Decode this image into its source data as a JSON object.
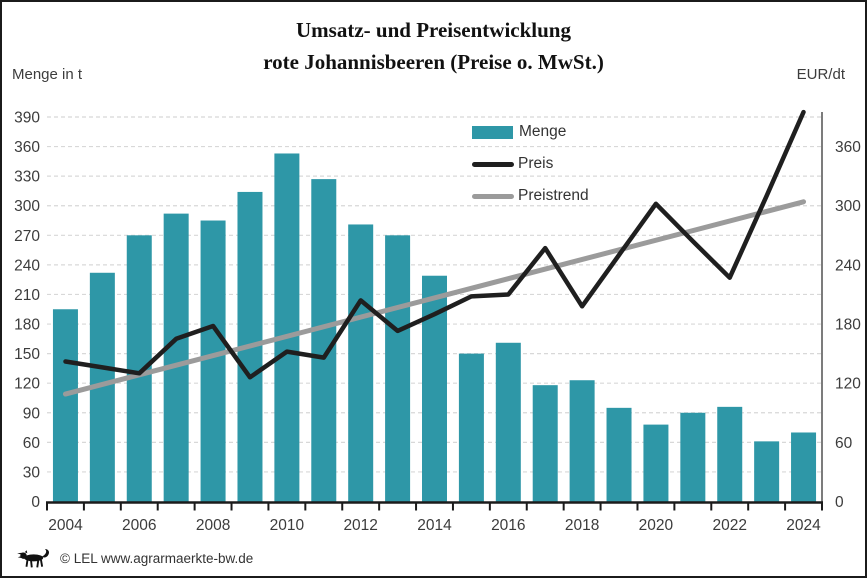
{
  "title": {
    "line1": "Umsatz- und Preisentwicklung",
    "line2": "rote Johannisbeeren (Preise o. MwSt.)"
  },
  "axis_units": {
    "left": "Menge in t",
    "right": "EUR/dt"
  },
  "legend": {
    "menge_label": "Menge",
    "preis_label": "Preis",
    "preistrend_label": "Preistrend"
  },
  "footer": {
    "text": "© LEL www.agrarmaerkte-bw.de"
  },
  "colors": {
    "bar_teal": "#2E97A7",
    "price_black": "#1f1f1f",
    "trend_gray": "#9b9b9b",
    "gridline": "#d8d8d8",
    "axis": "#1b1b1b",
    "tick_text": "#3c3c3c"
  },
  "chart_data": {
    "type": "bar",
    "subtype": "bar-with-lines",
    "title": "Umsatz- und Preisentwicklung rote Johannisbeeren (Preise o. MwSt.)",
    "grid": "horizontal-dashed",
    "legend_position": "inside-top-center",
    "categories": [
      2004,
      2005,
      2006,
      2007,
      2008,
      2009,
      2010,
      2011,
      2012,
      2013,
      2014,
      2015,
      2016,
      2017,
      2018,
      2019,
      2020,
      2021,
      2022,
      2023,
      2024
    ],
    "x_tick_labels": [
      2004,
      2006,
      2008,
      2010,
      2012,
      2014,
      2016,
      2018,
      2020,
      2022,
      2024
    ],
    "left_axis": {
      "label": "Menge in t",
      "min": 0,
      "max": 390,
      "tick_step": 30
    },
    "right_axis": {
      "label": "EUR/dt",
      "min": 0,
      "max": 390,
      "tick_step": 60,
      "highest_label": 360
    },
    "series": [
      {
        "name": "Menge",
        "type": "bar",
        "axis": "left",
        "unit": "t",
        "values": [
          195,
          232,
          270,
          292,
          285,
          314,
          353,
          327,
          281,
          270,
          229,
          150,
          161,
          118,
          123,
          95,
          78,
          90,
          96,
          61,
          70
        ]
      },
      {
        "name": "Preis",
        "type": "line",
        "axis": "right",
        "unit": "EUR/dt",
        "values": [
          142,
          136,
          130,
          165,
          178,
          126,
          152,
          146,
          204,
          173,
          190,
          208,
          210,
          257,
          198,
          250,
          302,
          264,
          227,
          310,
          395
        ]
      },
      {
        "name": "Preistrend",
        "type": "line",
        "axis": "right",
        "unit": "EUR/dt",
        "trend": true,
        "values": [
          109,
          118.75,
          128.5,
          138.25,
          148,
          157.75,
          167.5,
          177.25,
          187,
          196.75,
          206.5,
          216.25,
          226,
          235.75,
          245.5,
          255.25,
          265,
          274.75,
          284.5,
          294.25,
          304
        ]
      }
    ]
  }
}
